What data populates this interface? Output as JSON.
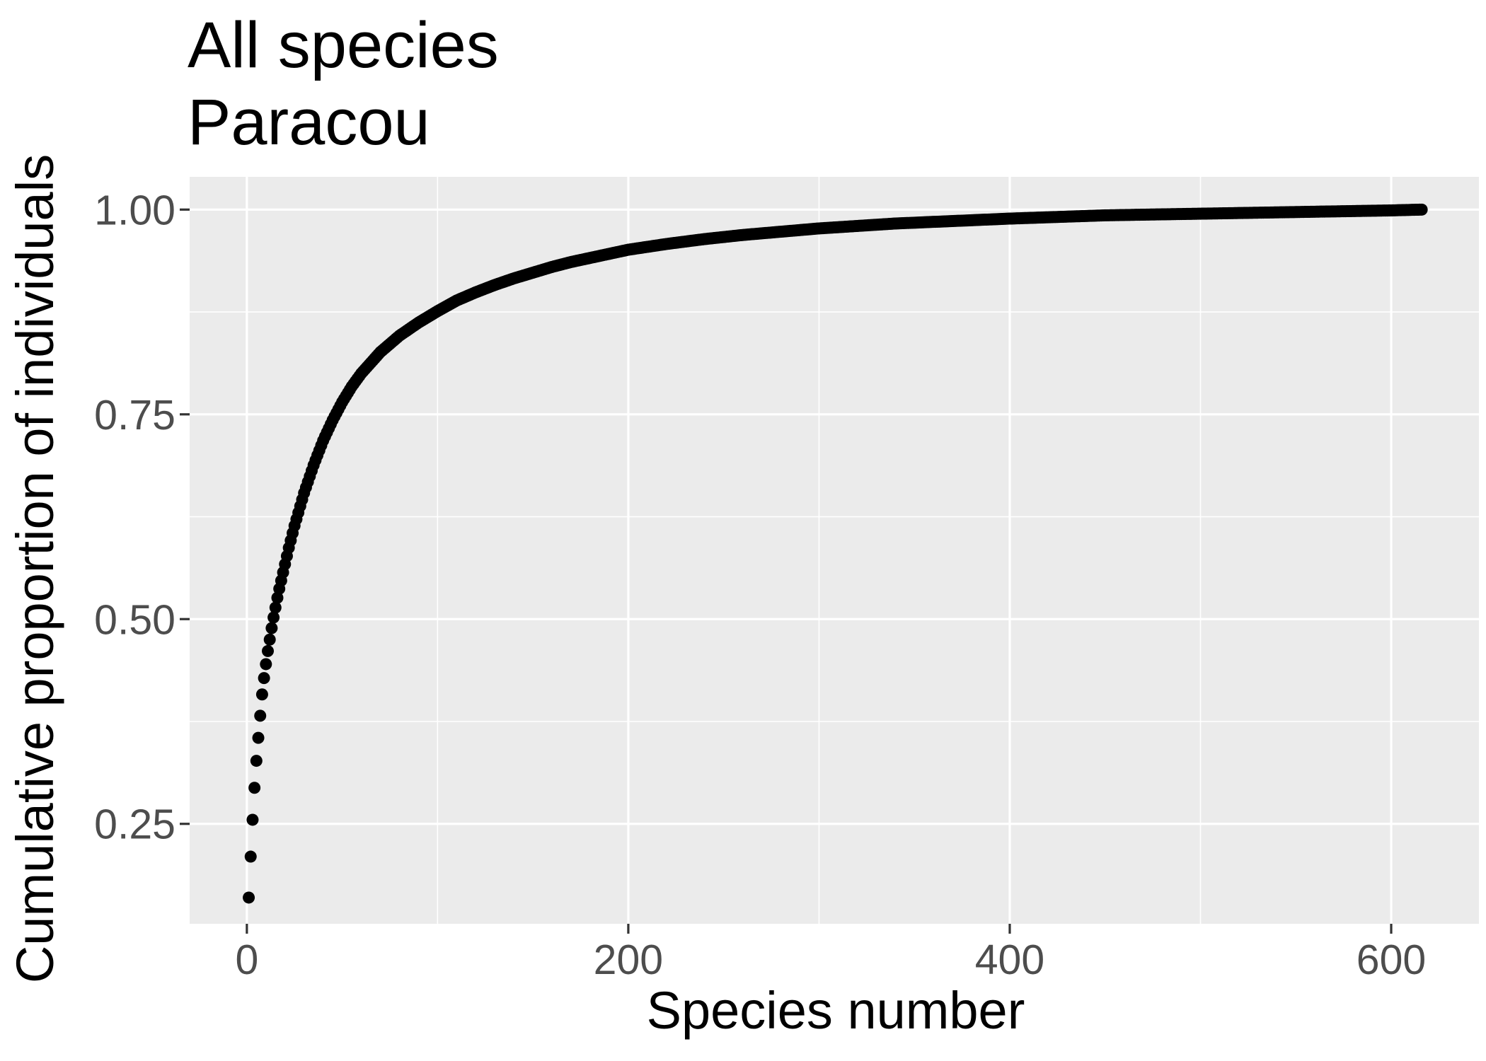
{
  "chart_data": {
    "type": "scatter",
    "title": "All species",
    "subtitle": "Paracou",
    "xlabel": "Species number",
    "ylabel": "Cumulative proportion of individuals",
    "xlim": [
      -30,
      646
    ],
    "ylim": [
      0.128,
      1.04
    ],
    "x_ticks": [
      0,
      200,
      400,
      600
    ],
    "x_tick_labels": [
      "0",
      "200",
      "400",
      "600"
    ],
    "y_ticks": [
      0.25,
      0.5,
      0.75,
      1.0
    ],
    "y_tick_labels": [
      "0.25",
      "0.50",
      "0.75",
      "1.00"
    ],
    "grid": true,
    "panel_background": "#ebebeb",
    "grid_color": "#ffffff",
    "point_color": "#000000",
    "n_species": 616,
    "series": [
      {
        "x": [
          1,
          2,
          3,
          4,
          5,
          6,
          7,
          8,
          9,
          10,
          11,
          12,
          13,
          14,
          15,
          16,
          17,
          18,
          19,
          20,
          21,
          22,
          23,
          24,
          25,
          26,
          27,
          28,
          29,
          30,
          35,
          40,
          45,
          50,
          55,
          60,
          70,
          80,
          90,
          100,
          110,
          120,
          130,
          140,
          150,
          160,
          170,
          180,
          190,
          200,
          220,
          240,
          260,
          280,
          300,
          320,
          340,
          360,
          380,
          400,
          425,
          450,
          475,
          500,
          525,
          550,
          575,
          600,
          616
        ],
        "y": [
          0.16,
          0.21,
          0.255,
          0.294,
          0.327,
          0.355,
          0.382,
          0.408,
          0.428,
          0.445,
          0.461,
          0.475,
          0.489,
          0.502,
          0.514,
          0.526,
          0.537,
          0.547,
          0.557,
          0.567,
          0.577,
          0.587,
          0.596,
          0.605,
          0.614,
          0.622,
          0.63,
          0.638,
          0.646,
          0.654,
          0.688,
          0.718,
          0.743,
          0.765,
          0.784,
          0.8,
          0.826,
          0.846,
          0.862,
          0.876,
          0.889,
          0.899,
          0.908,
          0.916,
          0.923,
          0.93,
          0.936,
          0.941,
          0.946,
          0.951,
          0.958,
          0.964,
          0.969,
          0.973,
          0.977,
          0.98,
          0.983,
          0.985,
          0.987,
          0.989,
          0.991,
          0.993,
          0.994,
          0.995,
          0.996,
          0.997,
          0.998,
          0.999,
          1.0
        ]
      }
    ]
  }
}
